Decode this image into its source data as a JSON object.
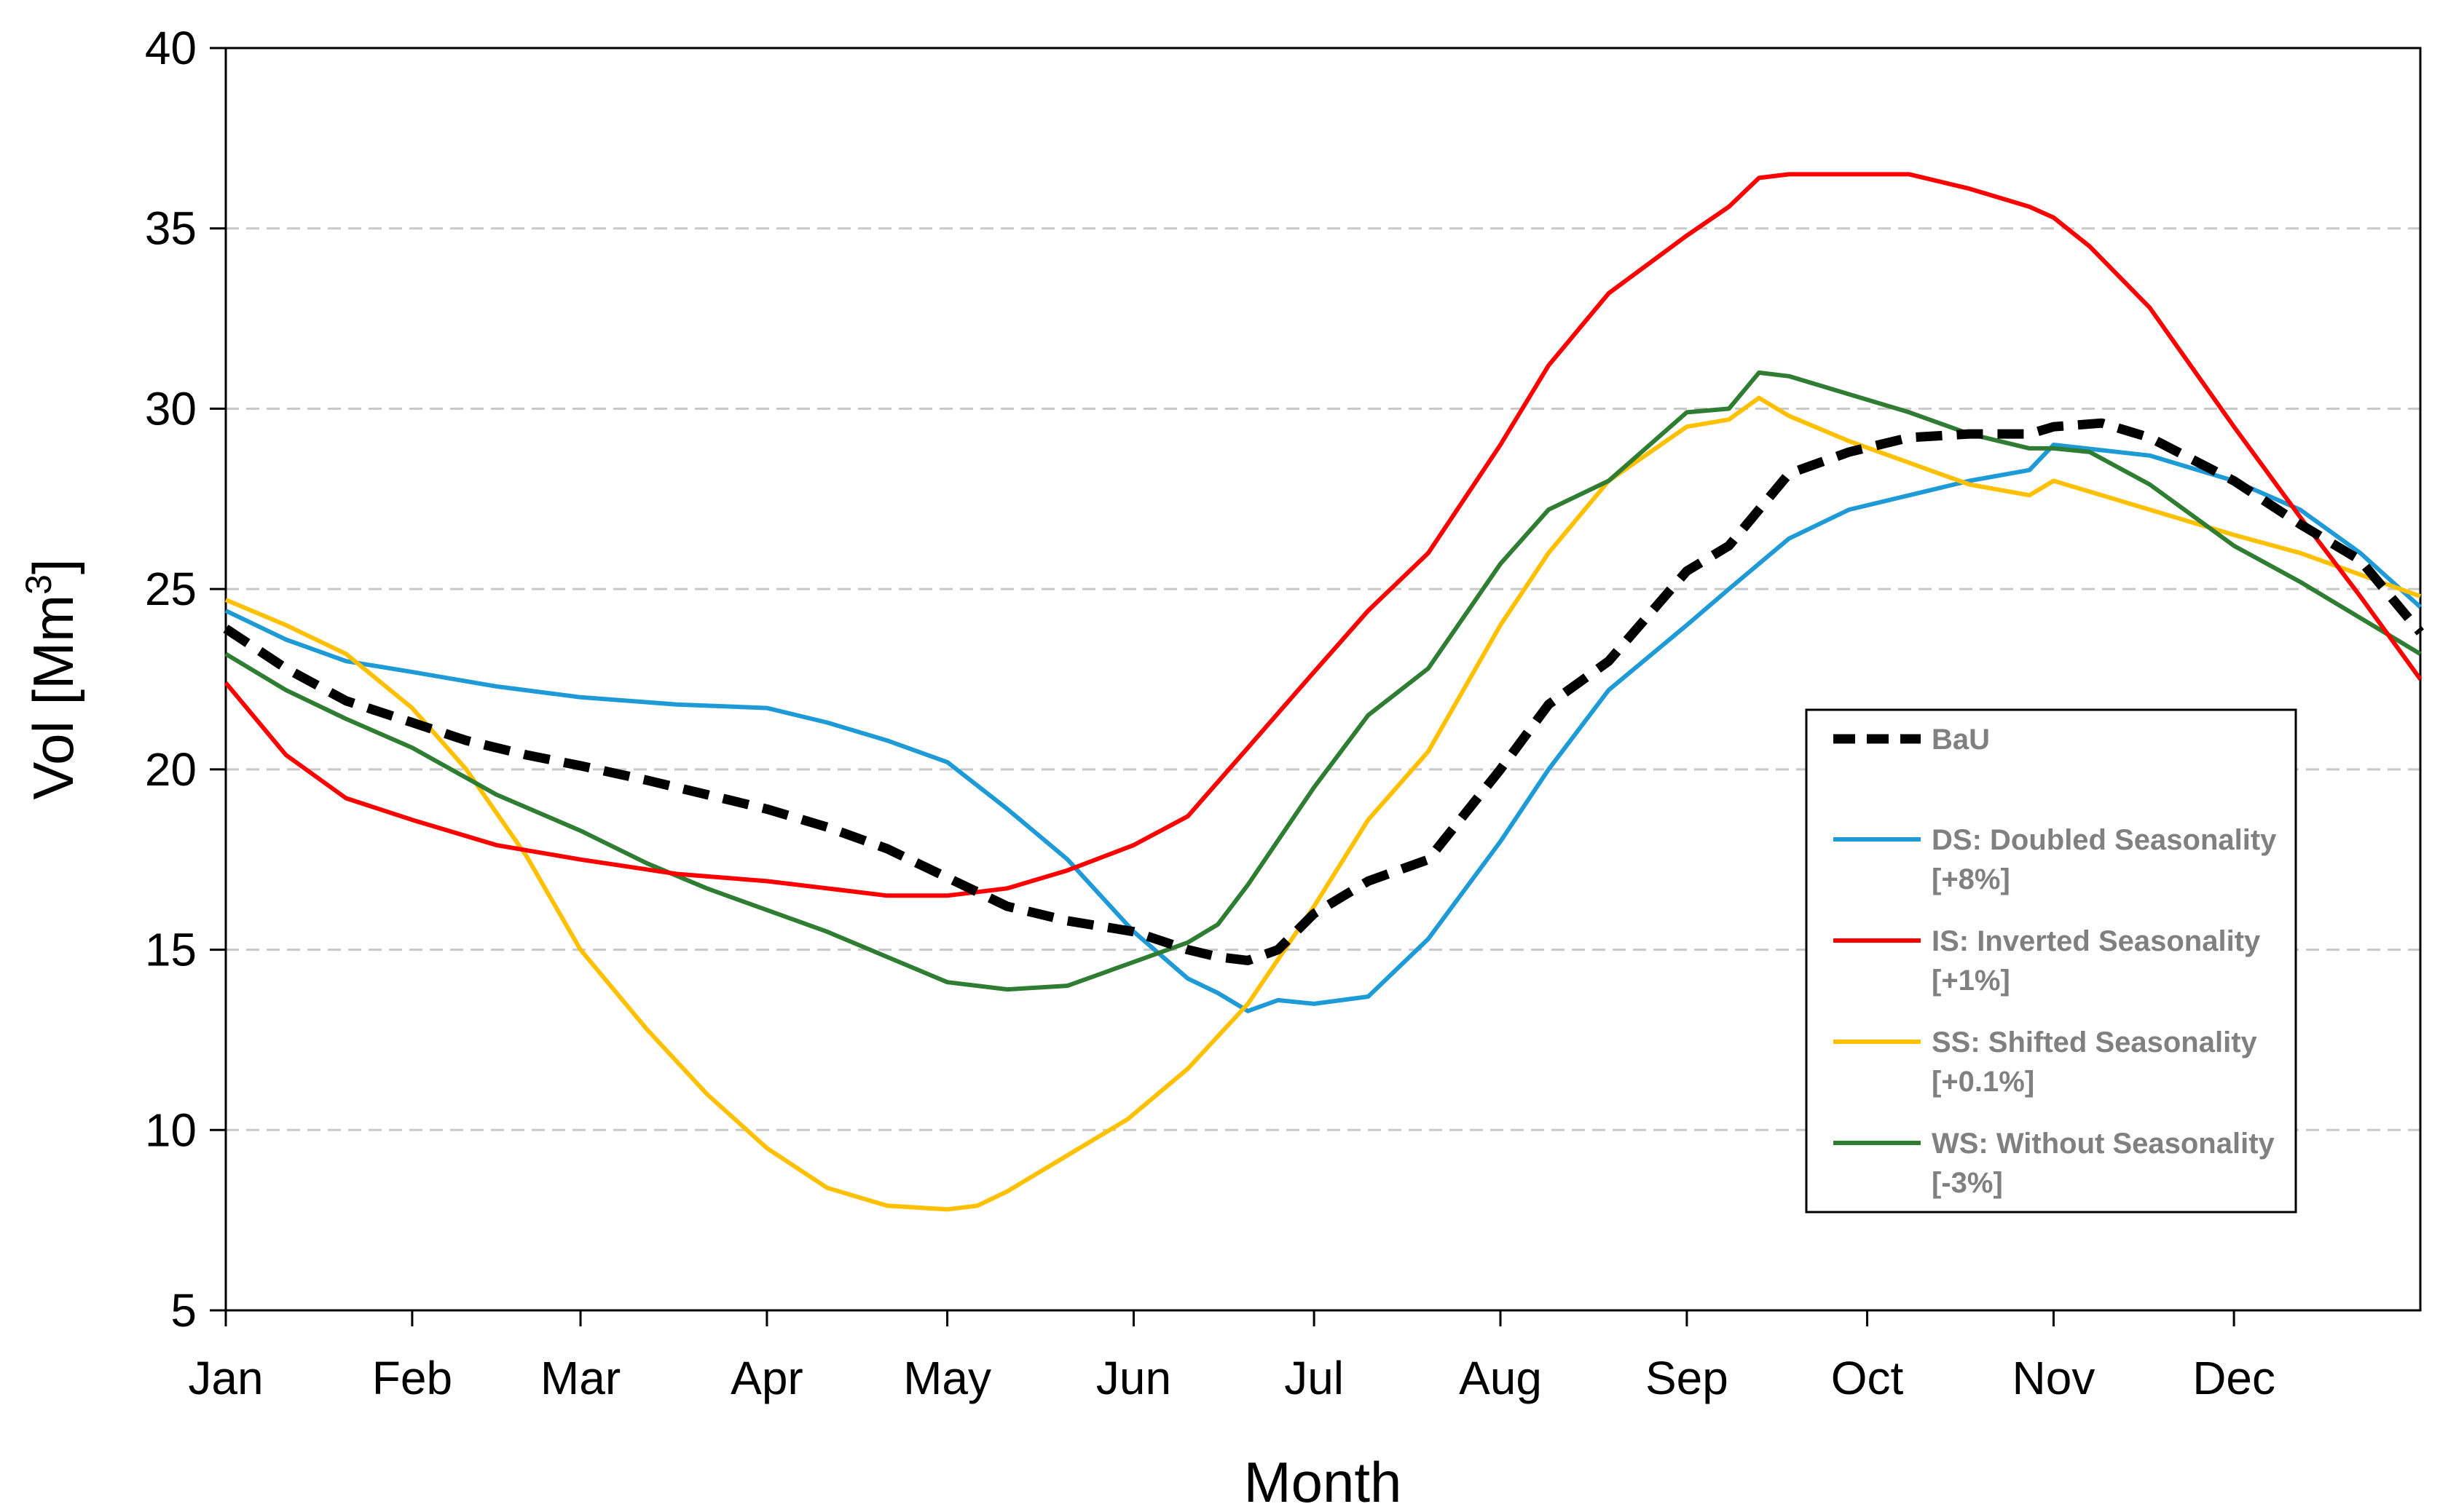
{
  "chart_data": {
    "type": "line",
    "title": "",
    "xlabel": "Month",
    "ylabel_main": "Vol [Mm",
    "ylabel_sup": "3",
    "ylabel_end": "]",
    "x_unit": "day of year",
    "xlim": [
      0,
      365
    ],
    "ylim": [
      5,
      40
    ],
    "yticks": [
      5,
      10,
      15,
      20,
      25,
      30,
      35,
      40
    ],
    "ytick_labels": [
      "5",
      "10",
      "15",
      "20",
      "25",
      "30",
      "35",
      "40"
    ],
    "months": [
      {
        "label": "Jan",
        "day": 0
      },
      {
        "label": "Feb",
        "day": 31
      },
      {
        "label": "Mar",
        "day": 59
      },
      {
        "label": "Apr",
        "day": 90
      },
      {
        "label": "May",
        "day": 120
      },
      {
        "label": "Jun",
        "day": 151
      },
      {
        "label": "Jul",
        "day": 181
      },
      {
        "label": "Aug",
        "day": 212
      },
      {
        "label": "Sep",
        "day": 243
      },
      {
        "label": "Oct",
        "day": 273
      },
      {
        "label": "Nov",
        "day": 304
      },
      {
        "label": "Dec",
        "day": 334
      }
    ],
    "gridlines": "horizontal dashed",
    "legend_position": "right-center",
    "series": [
      {
        "id": "bau",
        "name": "BaU",
        "legend_line1": "BaU",
        "legend_line2": "",
        "color": "#000000",
        "dashed": true,
        "x": [
          0,
          10,
          20,
          31,
          40,
          50,
          59,
          70,
          80,
          90,
          100,
          110,
          120,
          130,
          140,
          151,
          160,
          165,
          170,
          175,
          181,
          190,
          200,
          212,
          220,
          230,
          243,
          250,
          260,
          270,
          280,
          290,
          300,
          304,
          312,
          320,
          334,
          345,
          355,
          365
        ],
        "values": [
          23.9,
          22.8,
          21.9,
          21.3,
          20.8,
          20.4,
          20.1,
          19.7,
          19.3,
          18.9,
          18.4,
          17.8,
          17.0,
          16.2,
          15.8,
          15.5,
          15.0,
          14.8,
          14.7,
          15.0,
          16.0,
          16.9,
          17.5,
          20.0,
          21.8,
          23.0,
          25.5,
          26.2,
          28.2,
          28.8,
          29.2,
          29.3,
          29.3,
          29.5,
          29.6,
          29.2,
          28.0,
          26.8,
          25.8,
          23.8
        ]
      },
      {
        "id": "ds",
        "name": "DS: Doubled Seasonality [+8%]",
        "legend_line1": "DS: Doubled Seasonality",
        "legend_line2": "[+8%]",
        "color": "#1E9BD7",
        "dashed": false,
        "x": [
          0,
          10,
          20,
          31,
          45,
          59,
          75,
          90,
          100,
          110,
          120,
          130,
          140,
          151,
          160,
          165,
          170,
          175,
          181,
          190,
          200,
          212,
          220,
          230,
          243,
          250,
          260,
          270,
          280,
          290,
          300,
          304,
          320,
          334,
          345,
          355,
          365
        ],
        "values": [
          24.4,
          23.6,
          23.0,
          22.7,
          22.3,
          22.0,
          21.8,
          21.7,
          21.3,
          20.8,
          20.2,
          18.9,
          17.5,
          15.5,
          14.2,
          13.8,
          13.3,
          13.6,
          13.5,
          13.7,
          15.3,
          18.0,
          20.0,
          22.2,
          24.0,
          25.0,
          26.4,
          27.2,
          27.6,
          28.0,
          28.3,
          29.0,
          28.7,
          28.0,
          27.2,
          26.0,
          24.5
        ]
      },
      {
        "id": "is",
        "name": "IS: Inverted Seasonality [+1%]",
        "legend_line1": "IS: Inverted Seasonality",
        "legend_line2": "[+1%]",
        "color": "#FF0000",
        "dashed": false,
        "x": [
          0,
          10,
          20,
          31,
          45,
          59,
          75,
          90,
          100,
          110,
          120,
          130,
          140,
          151,
          160,
          170,
          181,
          190,
          200,
          212,
          220,
          230,
          243,
          250,
          255,
          260,
          270,
          280,
          290,
          300,
          304,
          310,
          320,
          334,
          345,
          355,
          365
        ],
        "values": [
          22.4,
          20.4,
          19.2,
          18.6,
          17.9,
          17.5,
          17.1,
          16.9,
          16.7,
          16.5,
          16.5,
          16.7,
          17.2,
          17.9,
          18.7,
          20.6,
          22.7,
          24.4,
          26.0,
          29.0,
          31.2,
          33.2,
          34.8,
          35.6,
          36.4,
          36.5,
          36.5,
          36.5,
          36.1,
          35.6,
          35.3,
          34.5,
          32.8,
          29.5,
          27.0,
          24.8,
          22.5
        ]
      },
      {
        "id": "ss",
        "name": "SS: Shifted Seasonality [+0.1%]",
        "legend_line1": "SS: Shifted Seasonality",
        "legend_line2": "[+0.1%]",
        "color": "#FFC000",
        "dashed": false,
        "x": [
          0,
          10,
          20,
          31,
          40,
          50,
          59,
          70,
          80,
          90,
          100,
          110,
          120,
          125,
          130,
          140,
          150,
          160,
          170,
          181,
          190,
          200,
          212,
          220,
          230,
          243,
          250,
          255,
          260,
          270,
          280,
          290,
          300,
          304,
          312,
          320,
          334,
          345,
          355,
          365
        ],
        "values": [
          24.7,
          24.0,
          23.2,
          21.7,
          20.0,
          17.6,
          15.0,
          12.8,
          11.0,
          9.5,
          8.4,
          7.9,
          7.8,
          7.9,
          8.3,
          9.3,
          10.3,
          11.7,
          13.5,
          16.2,
          18.6,
          20.5,
          24.0,
          26.0,
          28.0,
          29.5,
          29.7,
          30.3,
          29.8,
          29.1,
          28.5,
          27.9,
          27.6,
          28.0,
          27.6,
          27.2,
          26.5,
          26.0,
          25.4,
          24.8
        ]
      },
      {
        "id": "ws",
        "name": "WS: Without Seasonality [-3%]",
        "legend_line1": "WS: Without Seasonality",
        "legend_line2": "[-3%]",
        "color": "#2E7D32",
        "dashed": false,
        "x": [
          0,
          10,
          20,
          31,
          45,
          59,
          70,
          80,
          90,
          100,
          110,
          120,
          130,
          140,
          150,
          160,
          165,
          170,
          181,
          190,
          200,
          212,
          220,
          230,
          243,
          250,
          255,
          260,
          270,
          280,
          290,
          300,
          304,
          310,
          320,
          334,
          345,
          355,
          365
        ],
        "values": [
          23.2,
          22.2,
          21.4,
          20.6,
          19.3,
          18.3,
          17.4,
          16.7,
          16.1,
          15.5,
          14.8,
          14.1,
          13.9,
          14.0,
          14.6,
          15.2,
          15.7,
          16.8,
          19.5,
          21.5,
          22.8,
          25.7,
          27.2,
          28.0,
          29.9,
          30.0,
          31.0,
          30.9,
          30.4,
          29.9,
          29.3,
          28.9,
          28.9,
          28.8,
          27.9,
          26.2,
          25.2,
          24.2,
          23.2
        ]
      }
    ]
  }
}
